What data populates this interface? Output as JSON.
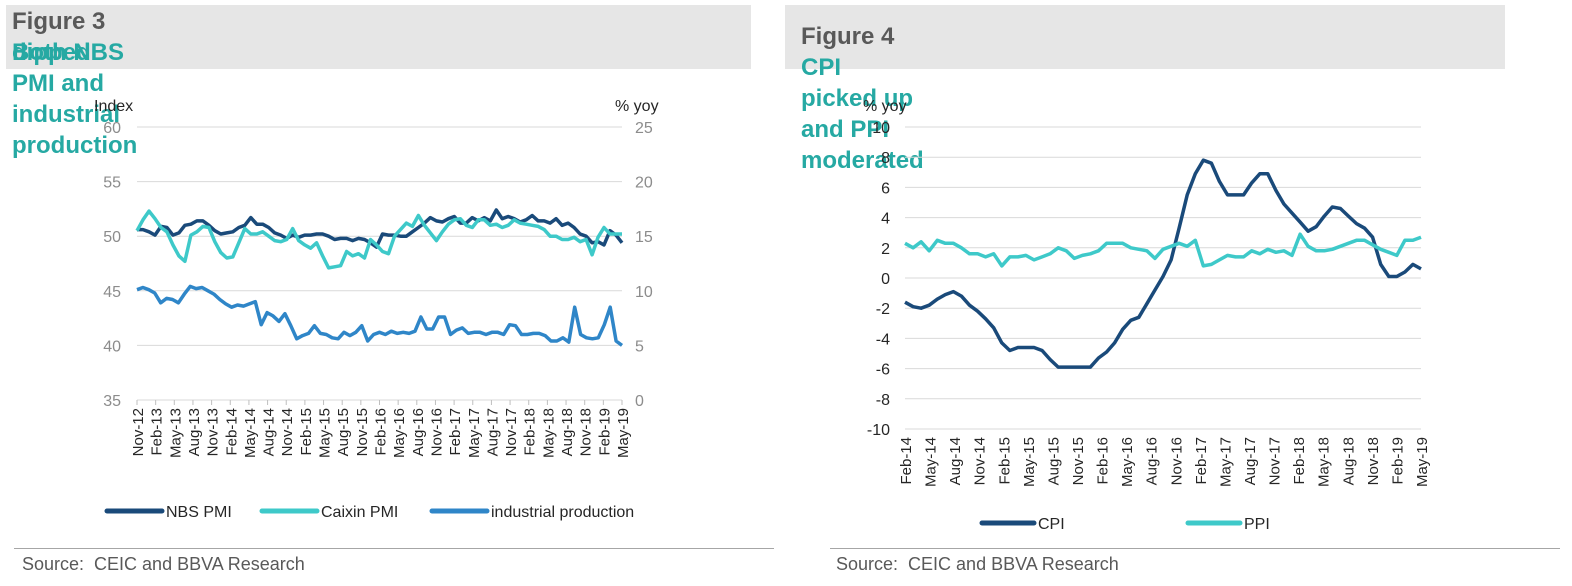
{
  "colors": {
    "nbs_pmi": "#1a4a7a",
    "caixin_pmi": "#3ec9c9",
    "industrial_production": "#2f86c8",
    "cpi": "#1a4a7a",
    "ppi": "#3ec9c9",
    "title_accent": "#26a9a3",
    "title_bg": "#e6e6e6",
    "grid": "#d9d9d9"
  },
  "left": {
    "fig_label": "Figure 3",
    "title_line1": "Both NBS PMI and industrial production",
    "title_line2": "dipped",
    "source": "Source:  CEIC and BBVA Research"
  },
  "right": {
    "fig_label": "Figure 4",
    "title": "CPI picked up and PPI moderated",
    "source": "Source:  CEIC and BBVA Research"
  },
  "chart_data": [
    {
      "type": "line",
      "y_left_label": "Index",
      "y_right_label": "% yoy",
      "ylim_left": [
        35,
        60
      ],
      "ylim_right": [
        0,
        25
      ],
      "yticks_left": [
        35,
        40,
        45,
        50,
        55,
        60
      ],
      "yticks_right": [
        0,
        5,
        10,
        15,
        20,
        25
      ],
      "xticklabels": [
        "Nov-12",
        "Feb-13",
        "May-13",
        "Aug-13",
        "Nov-13",
        "Feb-14",
        "May-14",
        "Aug-14",
        "Nov-14",
        "Feb-15",
        "May-15",
        "Aug-15",
        "Nov-15",
        "Feb-16",
        "May-16",
        "Aug-16",
        "Nov-16",
        "Feb-17",
        "May-17",
        "Aug-17",
        "Nov-17",
        "Feb-18",
        "May-18",
        "Aug-18",
        "Nov-18",
        "Feb-19",
        "May-19"
      ],
      "grid": true,
      "legend_position": "bottom",
      "series": [
        {
          "name": "NBS PMI",
          "axis": "left",
          "values": [
            50.6,
            50.6,
            50.4,
            50.1,
            50.9,
            50.8,
            50.1,
            50.3,
            51.0,
            51.1,
            51.4,
            51.4,
            51.0,
            50.5,
            50.2,
            50.3,
            50.4,
            50.8,
            51.0,
            51.7,
            51.1,
            51.1,
            50.8,
            50.3,
            50.1,
            49.8,
            50.1,
            49.9,
            50.1,
            50.1,
            50.2,
            50.2,
            50.0,
            49.7,
            49.8,
            49.8,
            49.6,
            49.8,
            49.7,
            49.4,
            49.0,
            50.2,
            50.1,
            50.1,
            50.0,
            50.0,
            50.4,
            50.8,
            51.2,
            51.7,
            51.4,
            51.3,
            51.6,
            51.8,
            51.2,
            51.2,
            51.7,
            51.4,
            51.7,
            51.4,
            52.4,
            51.6,
            51.8,
            51.6,
            51.3,
            51.5,
            51.9,
            51.4,
            51.4,
            51.2,
            51.6,
            51.0,
            51.2,
            50.8,
            50.2,
            50.0,
            49.4,
            49.5,
            49.2,
            50.5,
            50.1,
            49.4
          ]
        },
        {
          "name": "Caixin PMI",
          "axis": "left",
          "values": [
            50.5,
            51.5,
            52.3,
            51.6,
            50.8,
            50.4,
            49.2,
            48.2,
            47.7,
            50.1,
            50.4,
            50.9,
            50.8,
            49.5,
            48.5,
            48.0,
            48.1,
            49.4,
            50.7,
            50.2,
            50.2,
            50.4,
            50.0,
            49.6,
            49.5,
            49.7,
            50.7,
            49.6,
            49.2,
            48.9,
            49.4,
            48.2,
            47.1,
            47.2,
            47.3,
            48.6,
            48.2,
            48.4,
            48.0,
            49.7,
            49.2,
            48.6,
            48.4,
            50.0,
            50.6,
            51.2,
            50.9,
            51.9,
            51.0,
            50.3,
            49.6,
            50.4,
            51.1,
            51.5,
            51.6,
            51.0,
            50.8,
            51.5,
            51.5,
            51.0,
            51.1,
            50.8,
            51.0,
            51.5,
            51.2,
            51.1,
            51.0,
            50.9,
            50.6,
            50.0,
            50.0,
            49.7,
            49.7,
            49.9,
            49.5,
            49.7,
            48.3,
            49.9,
            50.8,
            50.2,
            50.2,
            50.2
          ]
        },
        {
          "name": "industrial production",
          "axis": "right",
          "values": [
            10.1,
            10.3,
            10.1,
            9.8,
            8.9,
            9.3,
            9.2,
            8.9,
            9.7,
            10.4,
            10.2,
            10.3,
            10.0,
            9.7,
            9.2,
            8.8,
            8.5,
            8.7,
            8.6,
            8.8,
            9.0,
            6.9,
            8.0,
            7.7,
            7.2,
            7.9,
            6.8,
            5.6,
            5.9,
            6.1,
            6.8,
            6.1,
            6.0,
            5.7,
            5.6,
            6.2,
            5.9,
            6.2,
            6.8,
            5.4,
            6.0,
            6.2,
            6.0,
            6.3,
            6.1,
            6.2,
            6.1,
            6.3,
            7.6,
            6.5,
            6.5,
            7.6,
            7.6,
            6.0,
            6.4,
            6.6,
            6.1,
            6.2,
            6.2,
            6.0,
            6.2,
            6.2,
            6.0,
            6.9,
            6.8,
            6.0,
            6.0,
            6.1,
            6.1,
            5.9,
            5.4,
            5.4,
            5.7,
            5.3,
            8.5,
            6.0,
            5.7,
            5.6,
            5.7,
            6.9,
            8.5,
            5.4,
            5.0
          ]
        }
      ]
    },
    {
      "type": "line",
      "y_left_label": "% yoy",
      "ylim": [
        -10,
        10
      ],
      "yticks": [
        -10,
        -8,
        -6,
        -4,
        -2,
        0,
        2,
        4,
        6,
        8,
        10
      ],
      "xticklabels": [
        "Feb-14",
        "May-14",
        "Aug-14",
        "Nov-14",
        "Feb-15",
        "May-15",
        "Aug-15",
        "Nov-15",
        "Feb-16",
        "May-16",
        "Aug-16",
        "Nov-16",
        "Feb-17",
        "May-17",
        "Aug-17",
        "Nov-17",
        "Feb-18",
        "May-18",
        "Aug-18",
        "Nov-18",
        "Feb-19",
        "May-19"
      ],
      "grid": true,
      "legend_position": "bottom",
      "series": [
        {
          "name": "CPI",
          "values": [
            -1.6,
            -1.9,
            -2.0,
            -1.8,
            -1.4,
            -1.1,
            -0.9,
            -1.2,
            -1.8,
            -2.2,
            -2.7,
            -3.3,
            -4.3,
            -4.8,
            -4.6,
            -4.6,
            -4.6,
            -4.8,
            -5.4,
            -5.9,
            -5.9,
            -5.9,
            -5.9,
            -5.9,
            -5.3,
            -4.9,
            -4.3,
            -3.4,
            -2.8,
            -2.6,
            -1.7,
            -0.8,
            0.1,
            1.2,
            3.3,
            5.5,
            6.9,
            7.8,
            7.6,
            6.4,
            5.5,
            5.5,
            5.5,
            6.3,
            6.9,
            6.9,
            5.8,
            4.9,
            4.3,
            3.7,
            3.1,
            3.4,
            4.1,
            4.7,
            4.6,
            4.1,
            3.6,
            3.3,
            2.7,
            0.9,
            0.1,
            0.1,
            0.4,
            0.9,
            0.6
          ]
        },
        {
          "name": "PPI",
          "values": [
            2.3,
            2.0,
            2.4,
            1.8,
            2.5,
            2.3,
            2.3,
            2.0,
            1.6,
            1.6,
            1.4,
            1.6,
            0.8,
            1.4,
            1.4,
            1.5,
            1.2,
            1.4,
            1.6,
            2.0,
            1.8,
            1.3,
            1.5,
            1.6,
            1.8,
            2.3,
            2.3,
            2.3,
            2.0,
            1.9,
            1.8,
            1.3,
            1.9,
            2.1,
            2.3,
            2.1,
            2.5,
            0.8,
            0.9,
            1.2,
            1.5,
            1.4,
            1.4,
            1.8,
            1.6,
            1.9,
            1.7,
            1.8,
            1.5,
            2.9,
            2.1,
            1.8,
            1.8,
            1.9,
            2.1,
            2.3,
            2.5,
            2.5,
            2.2,
            1.9,
            1.7,
            1.5,
            2.5,
            2.5,
            2.7
          ]
        }
      ]
    }
  ]
}
